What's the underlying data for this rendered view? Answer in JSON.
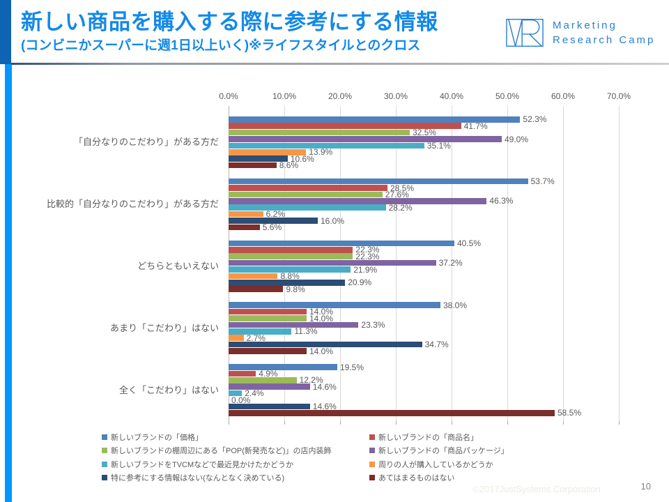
{
  "header": {
    "title": "新しい商品を購入する際に参考にする情報",
    "subtitle": "(コンビニかスーパーに週1日以上いく)※ライフスタイルとのクロス",
    "accent_color": "#1389e8"
  },
  "logo": {
    "line1": "Marketing",
    "line2": "Research Camp",
    "color": "#2b80d0"
  },
  "chart_data": {
    "type": "bar",
    "orientation": "horizontal",
    "grid": true,
    "legend_position": "bottom",
    "value_suffix": "%",
    "x_axis": {
      "min": 0,
      "max": 70,
      "tick_values": [
        0,
        10,
        20,
        30,
        40,
        50,
        60,
        70
      ],
      "tick_labels": [
        "0.0%",
        "10.0%",
        "20.0%",
        "30.0%",
        "40.0%",
        "50.0%",
        "60.0%",
        "70.0%"
      ]
    },
    "categories": [
      "「自分なりのこだわり」がある方だ",
      "比較的「自分なりのこだわり」がある方だ",
      "どちらともいえない",
      "あまり「こだわり」はない",
      "全く「こだわり」はない"
    ],
    "series": [
      {
        "name": "新しいブランドの「価格」",
        "color": "#4f81bd",
        "values": [
          52.3,
          53.7,
          40.5,
          38.0,
          19.5
        ]
      },
      {
        "name": "新しいブランドの「商品名」",
        "color": "#c0504d",
        "values": [
          41.7,
          28.5,
          22.3,
          14.0,
          4.9
        ]
      },
      {
        "name": "新しいブランドの棚周辺にある「POP(新発売など)」の店内装飾",
        "color": "#9bbb59",
        "values": [
          32.5,
          27.6,
          22.3,
          14.0,
          12.2
        ]
      },
      {
        "name": "新しいブランドの「商品パッケージ」",
        "color": "#8064a2",
        "values": [
          49.0,
          46.3,
          37.2,
          23.3,
          14.6
        ]
      },
      {
        "name": "新しいブランドをTVCMなどで最近見かけたかどうか",
        "color": "#4bacc6",
        "values": [
          35.1,
          28.2,
          21.9,
          11.3,
          2.4
        ]
      },
      {
        "name": "周りの人が購入しているかどうか",
        "color": "#f79646",
        "values": [
          13.9,
          6.2,
          8.8,
          2.7,
          0.0
        ]
      },
      {
        "name": "特に参考にする情報はない(なんとなく決めている)",
        "color": "#2c4d75",
        "values": [
          10.6,
          16.0,
          20.9,
          34.7,
          14.6
        ]
      },
      {
        "name": "あてはまるものはない",
        "color": "#7b2e2a",
        "values": [
          8.6,
          5.6,
          9.8,
          14.0,
          58.5
        ]
      }
    ]
  },
  "footer": {
    "copyright": "©2017JustSystems Corporation",
    "page_number": "10"
  }
}
